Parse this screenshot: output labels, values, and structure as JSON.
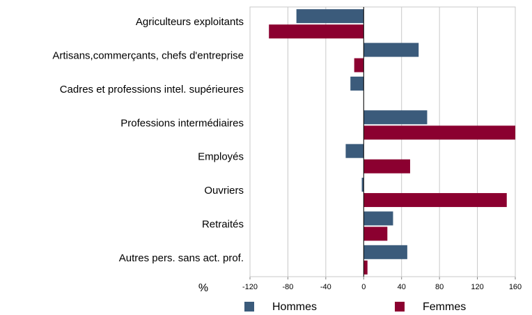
{
  "chart_data": {
    "type": "hbar",
    "categories": [
      "Agriculteurs exploitants",
      "Artisans,commerçants, chefs d'entreprise",
      "Cadres et professions intel. supérieures",
      "Professions intermédiaires",
      "Employés",
      "Ouvriers",
      "Retraités",
      "Autres pers. sans act. prof."
    ],
    "series": [
      {
        "name": "Hommes",
        "color": "#3b5b7b",
        "values": [
          -71,
          58,
          -14,
          67,
          -19,
          -2,
          31,
          46
        ]
      },
      {
        "name": "Femmes",
        "color": "#8b0030",
        "values": [
          -100,
          -10,
          0,
          160,
          49,
          151,
          25,
          4
        ]
      }
    ],
    "xlabel": "%",
    "xlim": [
      -120,
      160
    ],
    "xticks": [
      -120,
      -80,
      -40,
      0,
      40,
      80,
      120,
      160
    ],
    "grid": true
  }
}
